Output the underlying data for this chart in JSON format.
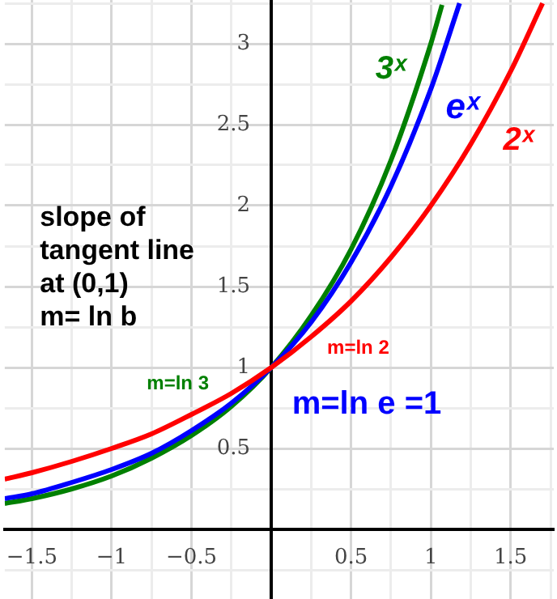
{
  "chart_data": {
    "type": "line",
    "xlim": [
      -1.67,
      1.77
    ],
    "ylim": [
      -0.43,
      3.27
    ],
    "xticks": [
      {
        "value": -1.5,
        "label": "−1.5"
      },
      {
        "value": -1.25,
        "label": null
      },
      {
        "value": -1,
        "label": "−1"
      },
      {
        "value": -0.75,
        "label": null
      },
      {
        "value": -0.5,
        "label": "−0.5"
      },
      {
        "value": -0.25,
        "label": null
      },
      {
        "value": 0,
        "label": null
      },
      {
        "value": 0.25,
        "label": null
      },
      {
        "value": 0.5,
        "label": "0.5"
      },
      {
        "value": 0.75,
        "label": null
      },
      {
        "value": 1,
        "label": "1"
      },
      {
        "value": 1.25,
        "label": null
      },
      {
        "value": 1.5,
        "label": "1.5"
      },
      {
        "value": 1.75,
        "label": null
      }
    ],
    "yticks": [
      {
        "value": -0.25,
        "label": null
      },
      {
        "value": 0,
        "label": null
      },
      {
        "value": 0.25,
        "label": null
      },
      0.5,
      {
        "value": 0.75,
        "label": null
      },
      1,
      {
        "value": 1.25,
        "label": null
      },
      1.5,
      {
        "value": 1.75,
        "label": null
      },
      2,
      {
        "value": 2.25,
        "label": null
      },
      2.5,
      {
        "value": 2.75,
        "label": null
      },
      3,
      {
        "value": 3.25,
        "label": null
      }
    ],
    "grid": true,
    "legend": false,
    "marker": "none",
    "line_style": "solid",
    "series": [
      {
        "name": "2ˣ",
        "color": "#ff0000",
        "x": [
          -1.67,
          -1.5,
          -1.25,
          -1,
          -0.75,
          -0.5,
          -0.25,
          0,
          0.25,
          0.5,
          0.75,
          1,
          1.25,
          1.5,
          1.7
        ],
        "values": [
          0.31,
          0.35,
          0.42,
          0.5,
          0.59,
          0.71,
          0.84,
          1,
          1.19,
          1.41,
          1.68,
          2,
          2.38,
          2.83,
          3.25
        ]
      },
      {
        "name": "eˣ",
        "color": "#0000ff",
        "x": [
          -1.67,
          -1.5,
          -1.25,
          -1,
          -0.75,
          -0.5,
          -0.25,
          0,
          0.25,
          0.5,
          0.75,
          1,
          1.18
        ],
        "values": [
          0.19,
          0.22,
          0.29,
          0.37,
          0.47,
          0.61,
          0.78,
          1,
          1.28,
          1.65,
          2.12,
          2.72,
          3.25
        ]
      },
      {
        "name": "3ˣ",
        "color": "#008000",
        "x": [
          -1.67,
          -1.5,
          -1.25,
          -1,
          -0.75,
          -0.5,
          -0.25,
          0,
          0.25,
          0.5,
          0.75,
          1,
          1.07
        ],
        "values": [
          0.16,
          0.19,
          0.25,
          0.33,
          0.44,
          0.58,
          0.76,
          1,
          1.32,
          1.73,
          2.28,
          3,
          3.24
        ]
      }
    ],
    "annotations": [
      "slope of\ntangent line\nat (0,1)\nm= ln b",
      "m=ln 2",
      "m=ln 3",
      "m=ln e =1"
    ]
  }
}
